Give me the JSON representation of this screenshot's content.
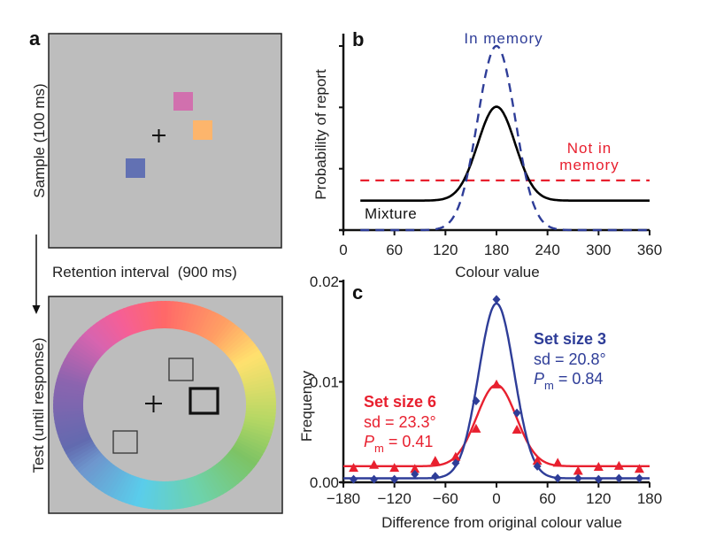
{
  "panel_a": {
    "label": "a",
    "sample_label": "Sample (100 ms)",
    "retention_label": "Retention interval  (900 ms)",
    "test_label": "Test (until response)",
    "background_color": "#bdbdbd",
    "sample_squares": [
      {
        "name": "pink-square",
        "color": "#d170ae"
      },
      {
        "name": "orange-square",
        "color": "#fdb56c"
      },
      {
        "name": "blue-square",
        "color": "#6271b3"
      }
    ],
    "fixation_icon": "plus-cross",
    "arrow_icon": "arrow-down"
  },
  "chart_data": [
    {
      "panel": "b",
      "type": "line",
      "title": "",
      "label": "b",
      "xlabel": "Colour value",
      "ylabel": "Probability of report",
      "xlim": [
        0,
        360
      ],
      "xticks": [
        "0",
        "60",
        "120",
        "180",
        "240",
        "300",
        "360"
      ],
      "ylim": [
        0,
        1
      ],
      "yticks_count": 4,
      "series": [
        {
          "name": "In memory",
          "style": "dashed",
          "color": "#2e3d98",
          "shape": "gaussian",
          "mean": 180,
          "sd": 22,
          "peak": 1.0
        },
        {
          "name": "Mixture",
          "style": "solid",
          "color": "#000000",
          "shape": "gaussian+uniform",
          "mean": 180,
          "sd": 22,
          "peak": 0.67,
          "baseline": 0.16
        },
        {
          "name": "Not in memory",
          "style": "dashed",
          "color": "#e8202f",
          "shape": "uniform",
          "level": 0.27
        }
      ],
      "annotations": [
        {
          "text": "In memory",
          "color": "#2e3d98"
        },
        {
          "text": "Not in",
          "color": "#e8202f"
        },
        {
          "text": "memory",
          "color": "#e8202f"
        },
        {
          "text": "Mixture",
          "color": "#000000"
        }
      ]
    },
    {
      "panel": "c",
      "type": "line",
      "label": "c",
      "xlabel": "Difference from original colour value",
      "ylabel": "Frequency",
      "xlim": [
        -180,
        180
      ],
      "xticks": [
        "−180",
        "−120",
        "−60",
        "0",
        "60",
        "120",
        "180"
      ],
      "xtick_values": [
        -180,
        -120,
        -60,
        0,
        60,
        120,
        180
      ],
      "ylim": [
        0,
        0.02
      ],
      "yticks": [
        "0.00",
        "0.01",
        "0.02"
      ],
      "ytick_values": [
        0,
        0.01,
        0.02
      ],
      "series": [
        {
          "name": "Set size 3",
          "color": "#2e3d98",
          "marker": "diamond",
          "sd_label": "sd = 20.8°",
          "pm_prefix": "P",
          "pm_sub": "m",
          "pm_value": " = 0.84",
          "fit": {
            "sd": 20.8,
            "peak": 0.0178,
            "baseline": 0.0004
          },
          "x": [
            -168,
            -144,
            -120,
            -96,
            -72,
            -48,
            -24,
            0,
            24,
            48,
            72,
            96,
            120,
            144,
            168
          ],
          "y": [
            0.0003,
            0.0003,
            0.0003,
            0.0008,
            0.0006,
            0.0019,
            0.0081,
            0.0182,
            0.0069,
            0.0016,
            0.0004,
            0.0004,
            0.0003,
            0.0004,
            0.0004
          ]
        },
        {
          "name": "Set size 6",
          "color": "#e8202f",
          "marker": "triangle",
          "sd_label": "sd = 23.3°",
          "pm_prefix": "P",
          "pm_sub": "m",
          "pm_value": " = 0.41",
          "fit": {
            "sd": 23.3,
            "peak": 0.0097,
            "baseline": 0.0016
          },
          "x": [
            -168,
            -144,
            -120,
            -96,
            -72,
            -48,
            -24,
            0,
            24,
            48,
            72,
            96,
            120,
            144,
            168
          ],
          "y": [
            0.0014,
            0.0017,
            0.0014,
            0.0013,
            0.0021,
            0.0025,
            0.0053,
            0.0097,
            0.0052,
            0.0021,
            0.0019,
            0.0011,
            0.0015,
            0.0016,
            0.0013
          ]
        }
      ]
    }
  ]
}
